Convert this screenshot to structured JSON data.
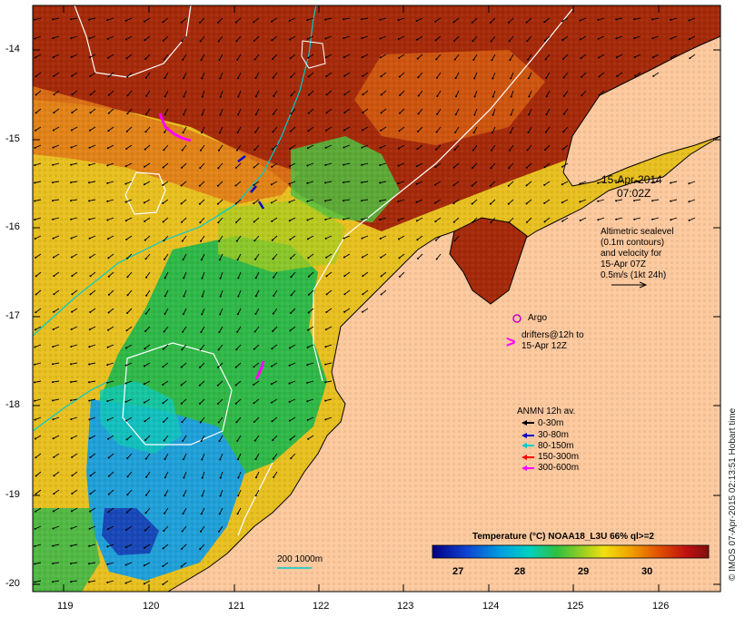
{
  "map": {
    "lat_ticks": [
      "-14",
      "-15",
      "-16",
      "-17",
      "-18",
      "-19",
      "-20"
    ],
    "lon_ticks": [
      "119",
      "120",
      "121",
      "122",
      "123",
      "124",
      "125",
      "126"
    ],
    "date_label": "15-Apr-2014",
    "time_label": "07:02Z",
    "altimetry_note": [
      "Altimetric sealevel",
      "(0.1m contours)",
      "and velocity for",
      "15-Apr 07Z",
      "0.5m/s (1kt 24h)"
    ],
    "argo_label": "Argo",
    "drifters_note": [
      "drifters@12h to",
      "15-Apr 12Z"
    ],
    "anmn_title": "ANMN 12h av.",
    "anmn_depths": [
      {
        "label": "0-30m",
        "color": "#000000"
      },
      {
        "label": "30-80m",
        "color": "#0000cc"
      },
      {
        "label": "80-150m",
        "color": "#00cccc"
      },
      {
        "label": "150-300m",
        "color": "#ff0000"
      },
      {
        "label": "300-600m",
        "color": "#ff00ff"
      }
    ],
    "isobath_label": "200  1000m",
    "colorbar_title": "Temperature (°C) NOAA18_L3U 66% ql>=2",
    "colorbar_ticks": [
      "27",
      "28",
      "29",
      "30"
    ],
    "copyright": "© IMOS 07-Apr-2015 02:13:51 Hobart time",
    "colors": {
      "land": "#fdc99e",
      "warm": "#a52a0a",
      "mid": "#e8c020",
      "cool": "#22b050",
      "cold": "#1e7fd0",
      "isobath200": "#00cccc",
      "argo": "#cc00cc"
    }
  }
}
